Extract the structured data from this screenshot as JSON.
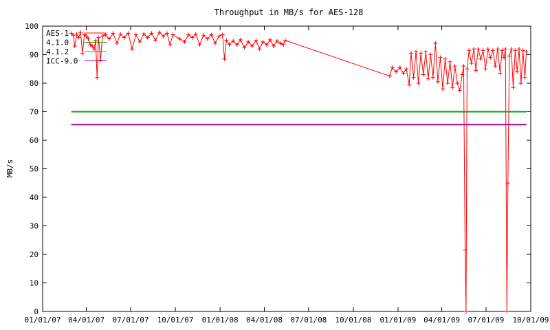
{
  "chart_data": {
    "type": "line",
    "title": "Throughput in MB/s for AES-128",
    "ylabel": "MB/s",
    "xlabel": "",
    "ylim": [
      0,
      100
    ],
    "xlim": [
      "2007-01-01",
      "2009-10-01"
    ],
    "y_ticks": [
      0,
      10,
      20,
      30,
      40,
      50,
      60,
      70,
      80,
      90,
      100
    ],
    "x_ticks": [
      {
        "date": "2007-01-01",
        "label": "01/01/07"
      },
      {
        "date": "2007-04-01",
        "label": "04/01/07"
      },
      {
        "date": "2007-07-01",
        "label": "07/01/07"
      },
      {
        "date": "2007-10-01",
        "label": "10/01/07"
      },
      {
        "date": "2008-01-01",
        "label": "01/01/08"
      },
      {
        "date": "2008-04-01",
        "label": "04/01/08"
      },
      {
        "date": "2008-07-01",
        "label": "07/01/08"
      },
      {
        "date": "2008-10-01",
        "label": "10/01/08"
      },
      {
        "date": "2009-01-01",
        "label": "01/01/09"
      },
      {
        "date": "2009-04-01",
        "label": "04/01/09"
      },
      {
        "date": "2009-07-01",
        "label": "07/01/09"
      },
      {
        "date": "2009-10-01",
        "label": "10/01/09"
      }
    ],
    "grid": false,
    "legend_position": "top-left",
    "series": [
      {
        "name": "AES-1",
        "color": "#ff0000",
        "marker": "plus",
        "points": [
          [
            "2007-03-01",
            97.5
          ],
          [
            "2007-03-05",
            96.8
          ],
          [
            "2007-03-08",
            93.0
          ],
          [
            "2007-03-12",
            97.2
          ],
          [
            "2007-03-16",
            96.0
          ],
          [
            "2007-03-20",
            97.8
          ],
          [
            "2007-03-24",
            90.5
          ],
          [
            "2007-03-28",
            97.0
          ],
          [
            "2007-04-01",
            96.5
          ],
          [
            "2007-04-05",
            95.5
          ],
          [
            "2007-04-09",
            93.5
          ],
          [
            "2007-04-13",
            93.0
          ],
          [
            "2007-04-17",
            92.0
          ],
          [
            "2007-04-20",
            95.0
          ],
          [
            "2007-04-23",
            82.0
          ],
          [
            "2007-04-26",
            96.0
          ],
          [
            "2007-04-30",
            88.0
          ],
          [
            "2007-05-04",
            96.5
          ],
          [
            "2007-05-10",
            97.0
          ],
          [
            "2007-05-18",
            95.5
          ],
          [
            "2007-05-26",
            97.5
          ],
          [
            "2007-06-03",
            94.0
          ],
          [
            "2007-06-10",
            97.2
          ],
          [
            "2007-06-18",
            96.0
          ],
          [
            "2007-06-26",
            97.5
          ],
          [
            "2007-07-04",
            92.0
          ],
          [
            "2007-07-12",
            97.0
          ],
          [
            "2007-07-20",
            94.5
          ],
          [
            "2007-07-28",
            97.3
          ],
          [
            "2007-08-05",
            96.0
          ],
          [
            "2007-08-13",
            97.5
          ],
          [
            "2007-08-21",
            95.0
          ],
          [
            "2007-08-29",
            97.8
          ],
          [
            "2007-09-06",
            96.5
          ],
          [
            "2007-09-14",
            97.5
          ],
          [
            "2007-09-20",
            93.5
          ],
          [
            "2007-09-26",
            97.0
          ],
          [
            "2007-10-10",
            95.5
          ],
          [
            "2007-10-20",
            94.5
          ],
          [
            "2007-10-28",
            97.0
          ],
          [
            "2007-11-05",
            96.0
          ],
          [
            "2007-11-12",
            97.2
          ],
          [
            "2007-11-20",
            93.5
          ],
          [
            "2007-11-28",
            96.8
          ],
          [
            "2007-12-06",
            95.5
          ],
          [
            "2007-12-14",
            97.0
          ],
          [
            "2007-12-22",
            94.0
          ],
          [
            "2007-12-30",
            96.5
          ],
          [
            "2008-01-06",
            97.0
          ],
          [
            "2008-01-10",
            88.5
          ],
          [
            "2008-01-14",
            95.0
          ],
          [
            "2008-01-20",
            93.5
          ],
          [
            "2008-01-28",
            94.8
          ],
          [
            "2008-02-05",
            93.5
          ],
          [
            "2008-02-12",
            95.2
          ],
          [
            "2008-02-20",
            92.5
          ],
          [
            "2008-02-28",
            94.5
          ],
          [
            "2008-03-07",
            93.0
          ],
          [
            "2008-03-15",
            95.0
          ],
          [
            "2008-03-22",
            92.0
          ],
          [
            "2008-03-29",
            94.5
          ],
          [
            "2008-04-06",
            93.5
          ],
          [
            "2008-04-13",
            95.2
          ],
          [
            "2008-04-20",
            93.0
          ],
          [
            "2008-04-27",
            94.8
          ],
          [
            "2008-05-04",
            94.0
          ],
          [
            "2008-05-10",
            93.5
          ],
          [
            "2008-05-14",
            95.0
          ],
          [
            "2008-12-15",
            82.5
          ],
          [
            "2008-12-20",
            85.5
          ],
          [
            "2008-12-28",
            84.0
          ],
          [
            "2009-01-05",
            85.5
          ],
          [
            "2009-01-12",
            83.5
          ],
          [
            "2009-01-18",
            85.0
          ],
          [
            "2009-01-24",
            79.5
          ],
          [
            "2009-01-28",
            90.5
          ],
          [
            "2009-02-02",
            82.0
          ],
          [
            "2009-02-07",
            91.0
          ],
          [
            "2009-02-12",
            80.0
          ],
          [
            "2009-02-17",
            90.5
          ],
          [
            "2009-02-22",
            83.0
          ],
          [
            "2009-02-27",
            91.0
          ],
          [
            "2009-03-04",
            81.5
          ],
          [
            "2009-03-09",
            90.0
          ],
          [
            "2009-03-14",
            82.0
          ],
          [
            "2009-03-19",
            94.0
          ],
          [
            "2009-03-24",
            80.5
          ],
          [
            "2009-03-29",
            89.0
          ],
          [
            "2009-04-03",
            78.0
          ],
          [
            "2009-04-08",
            88.5
          ],
          [
            "2009-04-13",
            80.0
          ],
          [
            "2009-04-18",
            87.5
          ],
          [
            "2009-04-23",
            78.5
          ],
          [
            "2009-04-28",
            86.0
          ],
          [
            "2009-05-03",
            80.0
          ],
          [
            "2009-05-08",
            77.5
          ],
          [
            "2009-05-13",
            83.0
          ],
          [
            "2009-05-16",
            86.0
          ],
          [
            "2009-05-19",
            21.5
          ],
          [
            "2009-05-21",
            0.0
          ],
          [
            "2009-05-23",
            85.0
          ],
          [
            "2009-05-27",
            91.5
          ],
          [
            "2009-06-01",
            87.0
          ],
          [
            "2009-06-06",
            92.0
          ],
          [
            "2009-06-10",
            84.5
          ],
          [
            "2009-06-15",
            92.0
          ],
          [
            "2009-06-20",
            88.5
          ],
          [
            "2009-06-25",
            91.5
          ],
          [
            "2009-06-30",
            85.0
          ],
          [
            "2009-07-05",
            92.0
          ],
          [
            "2009-07-10",
            89.0
          ],
          [
            "2009-07-15",
            91.5
          ],
          [
            "2009-07-20",
            86.0
          ],
          [
            "2009-07-25",
            92.0
          ],
          [
            "2009-07-30",
            83.5
          ],
          [
            "2009-08-03",
            91.5
          ],
          [
            "2009-08-07",
            89.0
          ],
          [
            "2009-08-10",
            92.0
          ],
          [
            "2009-08-13",
            0.0
          ],
          [
            "2009-08-15",
            45.0
          ],
          [
            "2009-08-18",
            89.5
          ],
          [
            "2009-08-22",
            92.0
          ],
          [
            "2009-08-26",
            78.5
          ],
          [
            "2009-08-30",
            91.5
          ],
          [
            "2009-09-03",
            84.0
          ],
          [
            "2009-09-07",
            92.0
          ],
          [
            "2009-09-11",
            80.0
          ],
          [
            "2009-09-15",
            91.5
          ],
          [
            "2009-09-19",
            82.0
          ],
          [
            "2009-09-22",
            91.0
          ]
        ]
      },
      {
        "name": "4.1.0",
        "color": "#00a000",
        "marker": "none",
        "points": [
          [
            "2007-03-01",
            70.0
          ],
          [
            "2009-09-22",
            70.0
          ]
        ]
      },
      {
        "name": "4.1.2",
        "color": "#00a0a0",
        "marker": "none",
        "points": []
      },
      {
        "name": "ICC-9.0",
        "color": "#a000a0",
        "marker": "none",
        "points": [
          [
            "2007-03-01",
            65.5
          ],
          [
            "2009-09-22",
            65.5
          ]
        ]
      }
    ]
  }
}
